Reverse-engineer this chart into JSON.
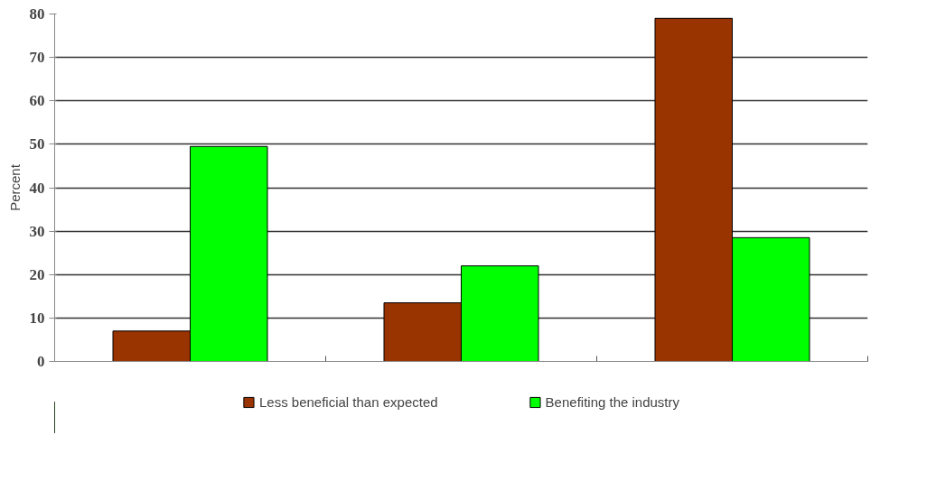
{
  "chart_data": {
    "type": "bar",
    "ylabel": "Percent",
    "categories": [
      null,
      null,
      null
    ],
    "series": [
      {
        "name": "Less beneficial than expected",
        "color": "#993300",
        "values": [
          7,
          13.5,
          79
        ]
      },
      {
        "name": "Benefiting the industry",
        "color": "#00ff00",
        "values": [
          49.5,
          22,
          28.5
        ]
      }
    ],
    "ylim": [
      0,
      80
    ],
    "yticks": [
      0,
      10,
      20,
      30,
      40,
      50,
      60,
      70,
      80
    ],
    "grid": "y",
    "legend": "bottom"
  }
}
